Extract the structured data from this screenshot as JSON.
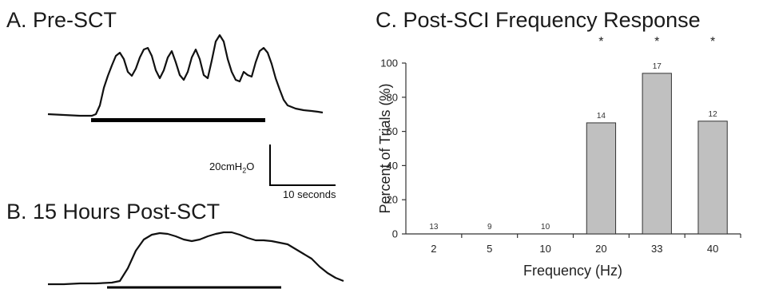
{
  "panels": {
    "a_title": "A. Pre-SCT",
    "b_title": "B. 15 Hours Post-SCT",
    "c_title": "C. Post-SCI Frequency Response"
  },
  "scale_bar": {
    "pressure_label": "20cmH",
    "pressure_subscript": "2",
    "pressure_suffix": "O",
    "time_label": "10 seconds"
  },
  "chart_data": {
    "type": "bar",
    "title": "C. Post-SCI Frequency Response",
    "xlabel": "Frequency (Hz)",
    "ylabel": "Percent of Trials (%)",
    "categories": [
      "2",
      "5",
      "10",
      "20",
      "33",
      "40"
    ],
    "values": [
      0,
      0,
      0,
      65,
      94,
      66
    ],
    "trial_counts": [
      "13",
      "9",
      "10",
      "14",
      "17",
      "12"
    ],
    "significance": [
      "",
      "",
      "",
      "*",
      "*",
      "*"
    ],
    "ylim": [
      0,
      100
    ],
    "yticks": [
      0,
      20,
      40,
      60,
      80,
      100
    ],
    "grid": false,
    "bar_color": "#c0c0c0",
    "bar_edge_color": "#333333"
  }
}
